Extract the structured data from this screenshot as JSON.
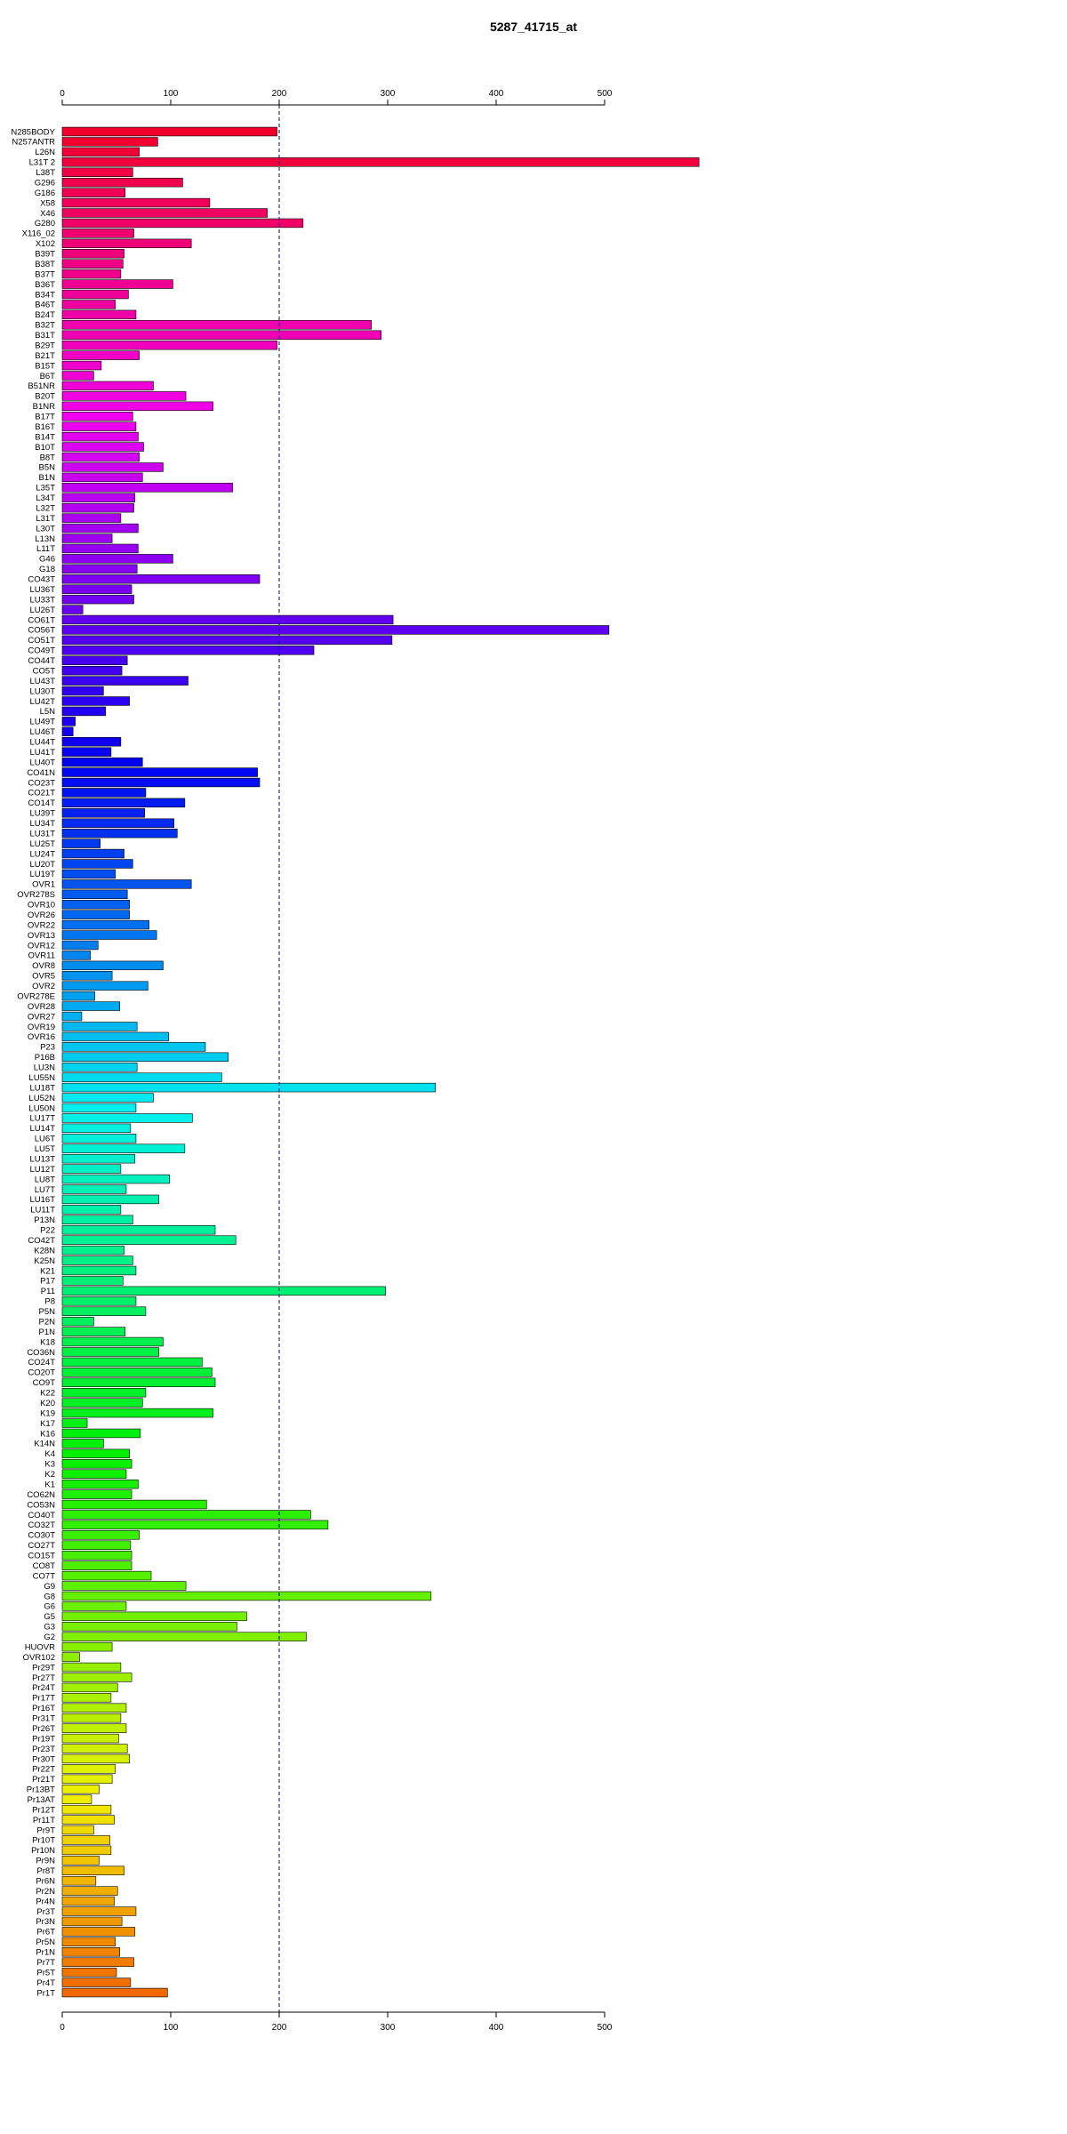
{
  "chart_data": {
    "type": "bar",
    "orientation": "horizontal",
    "title": "5287_41715_at",
    "xlabel": "",
    "ylabel": "",
    "xlim": [
      0,
      587
    ],
    "xticks": [
      0,
      100,
      200,
      300,
      400,
      500
    ],
    "xtick_labels": [
      "0",
      "100",
      "200",
      "300",
      "400",
      "500"
    ],
    "reference_line": 200,
    "grid": false,
    "categories": [
      "N285BODY",
      "N257ANTR",
      "L26N",
      "L31T 2",
      "L38T",
      "G296",
      "G186",
      "X58",
      "X46",
      "G280",
      "X116_02",
      "X102",
      "B39T",
      "B38T",
      "B37T",
      "B36T",
      "B34T",
      "B46T",
      "B24T",
      "B32T",
      "B31T",
      "B29T",
      "B21T",
      "B15T",
      "B6T",
      "B51NR",
      "B20T",
      "B1NR",
      "B17T",
      "B16T",
      "B14T",
      "B10T",
      "B8T",
      "B5N",
      "B1N",
      "L35T",
      "L34T",
      "L32T",
      "L31T",
      "L30T",
      "L13N",
      "L11T",
      "G46",
      "G18",
      "CO43T",
      "LU36T",
      "LU33T",
      "LU26T",
      "CO61T",
      "CO56T",
      "CO51T",
      "CO49T",
      "CO44T",
      "CO5T",
      "LU43T",
      "LU30T",
      "LU42T",
      "L5N",
      "LU49T",
      "LU46T",
      "LU44T",
      "LU41T",
      "LU40T",
      "CO41N",
      "CO23T",
      "CO21T",
      "CO14T",
      "LU39T",
      "LU34T",
      "LU31T",
      "LU25T",
      "LU24T",
      "LU20T",
      "LU19T",
      "OVR1",
      "OVR278S",
      "OVR10",
      "OVR26",
      "OVR22",
      "OVR13",
      "OVR12",
      "OVR11",
      "OVR8",
      "OVR5",
      "OVR2",
      "OVR278E",
      "OVR28",
      "OVR27",
      "OVR19",
      "OVR16",
      "P23",
      "P16B",
      "LU3N",
      "LU55N",
      "LU18T",
      "LU52N",
      "LU50N",
      "LU17T",
      "LU14T",
      "LU6T",
      "LU5T",
      "LU13T",
      "LU12T",
      "LU8T",
      "LU7T",
      "LU16T",
      "LU11T",
      "P13N",
      "P22",
      "CO42T",
      "K28N",
      "K25N",
      "K21",
      "P17",
      "P11",
      "P8",
      "P5N",
      "P2N",
      "P1N",
      "K18",
      "CO36N",
      "CO24T",
      "CO20T",
      "CO9T",
      "K22",
      "K20",
      "K19",
      "K17",
      "K16",
      "K14N",
      "K4",
      "K3",
      "K2",
      "K1",
      "CO62N",
      "CO53N",
      "CO40T",
      "CO32T",
      "CO30T",
      "CO27T",
      "CO15T",
      "CO8T",
      "CO7T",
      "G9",
      "G8",
      "G6",
      "G5",
      "G3",
      "G2",
      "HUOVR",
      "OVR102",
      "Pr29T",
      "Pr27T",
      "Pr24T",
      "Pr17T",
      "Pr16T",
      "Pr31T",
      "Pr26T",
      "Pr19T",
      "Pr23T",
      "Pr30T",
      "Pr22T",
      "Pr21T",
      "Pr13BT",
      "Pr13AT",
      "Pr12T",
      "Pr11T",
      "Pr9T",
      "Pr10T",
      "Pr10N",
      "Pr9N",
      "Pr8T",
      "Pr6N",
      "Pr2N",
      "Pr4N",
      "Pr3T",
      "Pr3N",
      "Pr6T",
      "Pr5N",
      "Pr1N",
      "Pr7T",
      "Pr5T",
      "Pr4T",
      "Pr1T"
    ],
    "values": [
      198,
      88,
      71,
      587,
      65,
      111,
      58,
      136,
      189,
      222,
      66,
      119,
      57,
      56,
      54,
      102,
      61,
      49,
      68,
      285,
      294,
      198,
      71,
      36,
      29,
      84,
      114,
      139,
      65,
      68,
      70,
      75,
      71,
      93,
      74,
      157,
      67,
      66,
      54,
      70,
      46,
      70,
      102,
      69,
      182,
      64,
      66,
      19,
      305,
      504,
      304,
      232,
      60,
      55,
      116,
      38,
      62,
      40,
      12,
      10,
      54,
      45,
      74,
      180,
      182,
      77,
      113,
      76,
      103,
      106,
      35,
      57,
      65,
      49,
      119,
      60,
      62,
      62,
      80,
      87,
      33,
      26,
      93,
      46,
      79,
      30,
      53,
      18,
      69,
      98,
      132,
      153,
      69,
      147,
      344,
      84,
      68,
      120,
      63,
      68,
      113,
      67,
      54,
      99,
      59,
      89,
      54,
      65,
      141,
      160,
      57,
      65,
      68,
      56,
      298,
      68,
      77,
      29,
      58,
      93,
      89,
      129,
      138,
      141,
      77,
      74,
      139,
      23,
      72,
      38,
      62,
      64,
      59,
      70,
      64,
      133,
      229,
      245,
      71,
      63,
      64,
      64,
      82,
      114,
      340,
      59,
      170,
      161,
      225,
      46,
      16,
      54,
      64,
      51,
      45,
      59,
      54,
      59,
      52,
      60,
      62,
      49,
      46,
      34,
      27,
      45,
      48,
      29,
      44,
      45,
      34,
      57,
      31,
      51,
      48,
      68,
      55,
      67,
      49,
      53,
      66,
      50,
      63,
      97
    ]
  }
}
